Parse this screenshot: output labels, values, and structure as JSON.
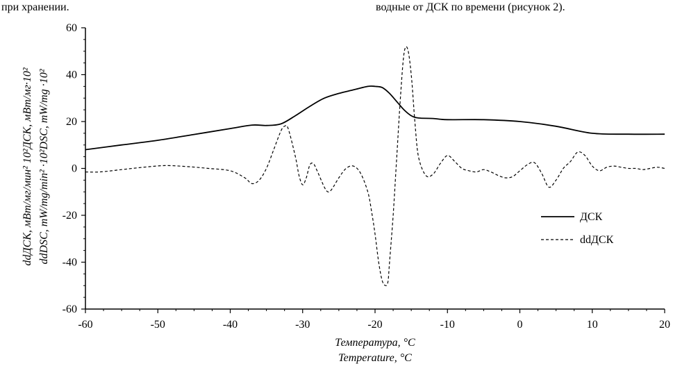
{
  "header": {
    "left_text": "при хранении.",
    "right_text": "водные от ДСК по времени (рисунок 2)."
  },
  "chart_data": {
    "type": "line",
    "title": "",
    "xlabel": [
      "Температура, °C",
      "Temperature, °C"
    ],
    "ylabel": [
      "ddДСК, мВт/мг/мин² 10²ДСК, мВт/мг·10²",
      "ddDSC, mW/mg/min² ·10²DSC, mW/mg ·10²"
    ],
    "xlim": [
      -60,
      20
    ],
    "ylim": [
      -60,
      60
    ],
    "xticks": [
      -60,
      -50,
      -40,
      -30,
      -20,
      -10,
      0,
      10,
      20
    ],
    "yticks": [
      -60,
      -40,
      -20,
      0,
      20,
      40,
      60
    ],
    "grid": false,
    "legend_position": "right",
    "series": [
      {
        "name": "ДСК",
        "style": "solid",
        "color": "#000000",
        "x": [
          -60,
          -55,
          -50,
          -45,
          -40,
          -37,
          -35,
          -33,
          -31,
          -29,
          -27,
          -25,
          -23,
          -21,
          -20,
          -19,
          -18,
          -17,
          -16,
          -15,
          -14,
          -12,
          -10,
          -5,
          0,
          5,
          10,
          15,
          20
        ],
        "y": [
          8,
          10,
          12,
          14.5,
          17,
          18.5,
          18.3,
          19,
          22.5,
          26.5,
          30,
          32,
          33.5,
          35,
          35,
          34.5,
          32,
          28.5,
          25,
          22.5,
          21.5,
          21.3,
          20.8,
          20.8,
          20,
          18,
          15,
          14.6,
          14.6
        ]
      },
      {
        "name": "ddДСК",
        "style": "dashed",
        "color": "#000000",
        "x": [
          -60,
          -58,
          -55,
          -52,
          -49,
          -46,
          -43,
          -40,
          -38,
          -37,
          -36,
          -35,
          -34,
          -33,
          -32.5,
          -32,
          -31,
          -30.5,
          -30,
          -29.5,
          -29,
          -28.5,
          -28,
          -27,
          -26.5,
          -26,
          -25,
          -24,
          -23,
          -22,
          -21,
          -20.5,
          -20,
          -19.5,
          -19,
          -18.5,
          -18.2,
          -18,
          -17.5,
          -17,
          -16.5,
          -16,
          -15.5,
          -15,
          -14.5,
          -14,
          -13,
          -12,
          -11,
          -10,
          -9,
          -8,
          -7,
          -6,
          -5,
          -4,
          -3,
          -2,
          -1,
          0,
          1,
          2,
          3,
          4,
          5,
          6,
          7,
          8,
          9,
          10,
          11,
          12,
          13,
          14,
          15,
          16,
          17,
          18,
          19,
          20
        ],
        "y": [
          -1.5,
          -1.5,
          -0.5,
          0.5,
          1.2,
          0.8,
          0,
          -1,
          -4,
          -6.5,
          -5,
          0,
          8,
          16,
          18,
          17,
          5,
          -3,
          -7,
          -4,
          1.5,
          2,
          -1,
          -8,
          -10,
          -9,
          -4,
          0,
          1,
          -2,
          -10,
          -18,
          -28,
          -40,
          -48,
          -50,
          -48,
          -40,
          -20,
          5,
          30,
          49,
          51,
          40,
          20,
          5,
          -3,
          -2.5,
          2,
          5.5,
          3,
          0,
          -1,
          -1.5,
          -0.5,
          -1.5,
          -3,
          -4,
          -3.5,
          -1,
          1.5,
          2.5,
          -2,
          -8,
          -5,
          0,
          3,
          7,
          5.5,
          1,
          -1,
          0.5,
          1,
          0.5,
          0,
          0,
          -0.5,
          0,
          0.5,
          0
        ]
      }
    ]
  }
}
